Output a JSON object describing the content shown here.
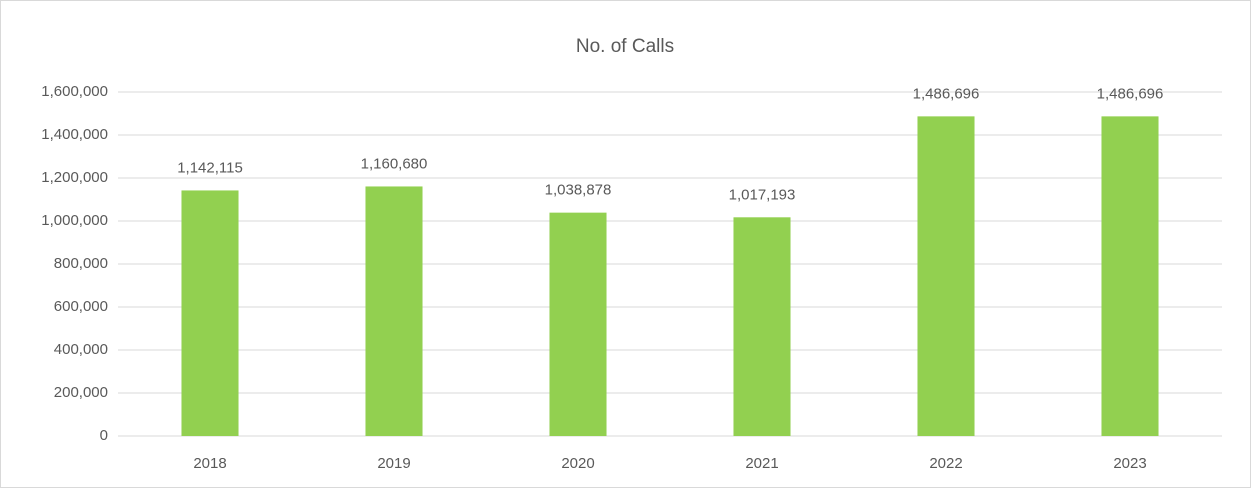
{
  "chart_data": {
    "type": "bar",
    "title": "No. of Calls",
    "categories": [
      "2018",
      "2019",
      "2020",
      "2021",
      "2022",
      "2023"
    ],
    "values": [
      1142115,
      1160680,
      1038878,
      1017193,
      1486696,
      1486696
    ],
    "value_labels": [
      "1,142,115",
      "1,160,680",
      "1,038,878",
      "1,017,193",
      "1,486,696",
      "1,486,696"
    ],
    "color": "#92d050",
    "ylim": [
      0,
      1600000
    ],
    "yticks": [
      0,
      {
        "value": 200000,
        "label": "200,000"
      },
      {
        "value": 400000,
        "label": "400,000"
      },
      {
        "value": 600000,
        "label": "600,000"
      },
      {
        "value": 800000,
        "label": "800,000"
      },
      {
        "value": 1000000,
        "label": "1,000,000"
      },
      {
        "value": 1200000,
        "label": "1,200,000"
      },
      {
        "value": 1400000,
        "label": "1,400,000"
      },
      {
        "value": 1600000,
        "label": "1,600,000"
      }
    ],
    "grid": true
  }
}
